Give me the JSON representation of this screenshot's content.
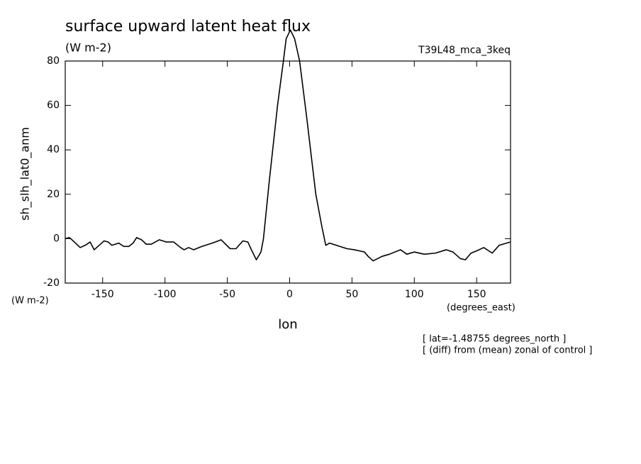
{
  "chart_data": {
    "type": "line",
    "title": "surface upward latent heat flux",
    "subtitle": "(W m-2)",
    "dataset_label": "T39L48_mca_3keq",
    "y_label": "sh_slh_lat0_anm",
    "y_units": "(W m-2)",
    "x_label": "lon",
    "x_units": "(degrees_east)",
    "annotations": [
      "[ lat=-1.48755 degrees_north ]",
      "[ (diff) from (mean) zonal of control ]"
    ],
    "color": "#000000",
    "x": [
      -180,
      -177,
      -175.5,
      -168,
      -164,
      -160,
      -156.8,
      -152.8,
      -148.9,
      -145.5,
      -142.6,
      -137,
      -133,
      -129,
      -125.6,
      -122.7,
      -118.8,
      -115,
      -111,
      -104.5,
      -98.9,
      -93,
      -87.5,
      -84.7,
      -81,
      -77,
      -70.5,
      -62,
      -55,
      -47.7,
      -43,
      -37.5,
      -33.5,
      -30.7,
      -26.7,
      -23,
      -21,
      -16.5,
      -9.7,
      -5,
      -2.8,
      0.6,
      4,
      8,
      13.6,
      21,
      26,
      29,
      32,
      37.5,
      46,
      52,
      60,
      63,
      67,
      74,
      80,
      89,
      94,
      100,
      108,
      117,
      125.6,
      131,
      137,
      141,
      145.5,
      150,
      155.7,
      162.5,
      168,
      177
    ],
    "values": [
      0,
      0.5,
      0,
      -4,
      -3,
      -1.5,
      -5,
      -3,
      -1,
      -1.5,
      -3,
      -2,
      -3.5,
      -3.5,
      -2,
      0.5,
      -0.5,
      -2.5,
      -2.5,
      -0.5,
      -1.5,
      -1.5,
      -4,
      -5,
      -4,
      -5,
      -3.5,
      -2,
      -0.5,
      -4.5,
      -4.5,
      -1,
      -1.5,
      -5,
      -9.5,
      -6,
      0,
      25,
      60,
      80,
      90,
      94,
      90,
      80,
      55,
      20,
      5,
      -3,
      -2,
      -3,
      -4.5,
      -5,
      -6,
      -8,
      -10,
      -8,
      -7,
      -5,
      -7,
      -6,
      -7,
      -6.5,
      -5,
      -6,
      -9,
      -9.5,
      -6.5,
      -5.5,
      -4,
      -6.5,
      -3,
      -1.5
    ],
    "xlim": [
      -180,
      177.1875
    ],
    "xticks": [
      -150,
      -100,
      -50,
      0,
      50,
      100,
      150
    ],
    "ylim": [
      -20,
      80
    ],
    "yticks": [
      -20,
      0,
      20,
      40,
      60,
      80
    ]
  }
}
